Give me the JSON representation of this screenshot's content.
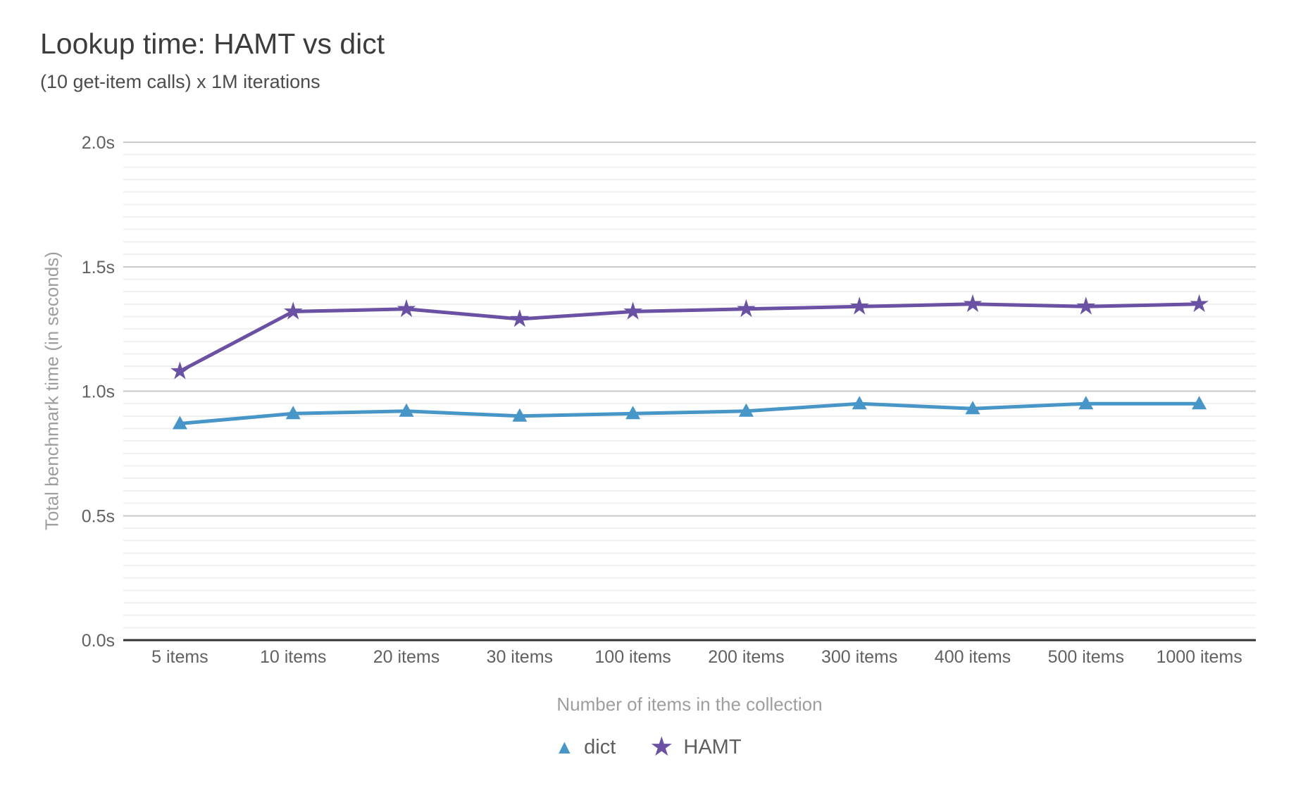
{
  "chart_data": {
    "type": "line",
    "title": "Lookup time: HAMT vs dict",
    "subtitle": "(10 get-item calls) x 1M iterations",
    "xlabel": "Number of items in the collection",
    "ylabel": "Total benchmark time (in seconds)",
    "categories": [
      "5 items",
      "10 items",
      "20 items",
      "30 items",
      "100 items",
      "200 items",
      "300 items",
      "400 items",
      "500 items",
      "1000 items"
    ],
    "series": [
      {
        "name": "dict",
        "marker": "triangle",
        "color": "#4796c7",
        "values": [
          0.87,
          0.91,
          0.92,
          0.9,
          0.91,
          0.92,
          0.95,
          0.93,
          0.95,
          0.95
        ]
      },
      {
        "name": "HAMT",
        "marker": "star",
        "color": "#6a51a3",
        "values": [
          1.08,
          1.32,
          1.33,
          1.29,
          1.32,
          1.33,
          1.34,
          1.35,
          1.34,
          1.35
        ]
      }
    ],
    "ylim": [
      0,
      2.0
    ],
    "ytick_step": 0.5,
    "ytick_labels": [
      "0.0s",
      "0.5s",
      "1.0s",
      "1.5s",
      "2.0s"
    ],
    "minor_grid_step": 0.05,
    "grid": "on",
    "legend_position": "bottom"
  },
  "icons": {
    "triangle_glyph": "▲",
    "star_glyph": "★"
  },
  "colors": {
    "title_text": "#3c3c3c",
    "subtitle_text": "#4c4c4c",
    "axis_title_text": "#9e9e9e",
    "tick_label_text": "#616161",
    "legend_text": "#5f5f5f",
    "major_gridline": "#c9c9c9",
    "minor_gridline": "#f0f0f0",
    "x_axis_line": "#333333",
    "background": "#ffffff"
  }
}
